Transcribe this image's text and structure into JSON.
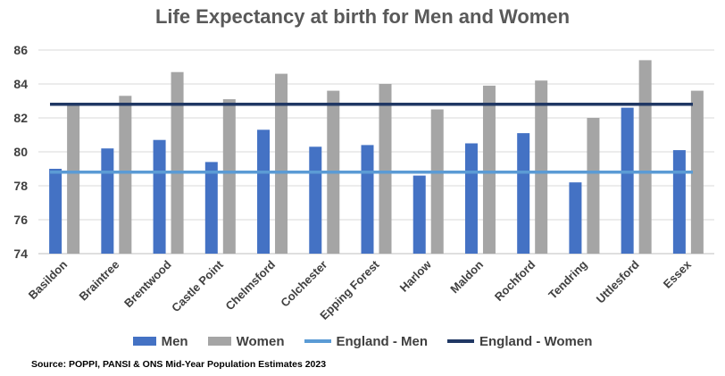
{
  "chart_data": {
    "type": "bar",
    "title": "Life Expectancy at birth for Men and Women",
    "categories": [
      "Basildon",
      "Braintree",
      "Brentwood",
      "Castle Point",
      "Chelmsford",
      "Colchester",
      "Epping Forest",
      "Harlow",
      "Maldon",
      "Rochford",
      "Tendring",
      "Uttlesford",
      "Essex"
    ],
    "series": [
      {
        "name": "Men",
        "color": "#4472c4",
        "values": [
          79.0,
          80.2,
          80.7,
          79.4,
          81.3,
          80.3,
          80.4,
          78.6,
          80.5,
          81.1,
          78.2,
          82.6,
          80.1
        ]
      },
      {
        "name": "Women",
        "color": "#a5a5a5",
        "values": [
          82.8,
          83.3,
          84.7,
          83.1,
          84.6,
          83.6,
          84.0,
          82.5,
          83.9,
          84.2,
          82.0,
          85.4,
          83.6
        ]
      }
    ],
    "reference_lines": [
      {
        "name": "England - Men",
        "value": 78.8,
        "color": "#5b9bd5"
      },
      {
        "name": "England - Women",
        "value": 82.8,
        "color": "#203864"
      }
    ],
    "ylim": [
      74,
      86
    ],
    "yticks": [
      74,
      76,
      78,
      80,
      82,
      84,
      86
    ],
    "grid": true,
    "legend": "bottom"
  },
  "source": "Source: POPPI, PANSI & ONS Mid-Year Population Estimates 2023"
}
